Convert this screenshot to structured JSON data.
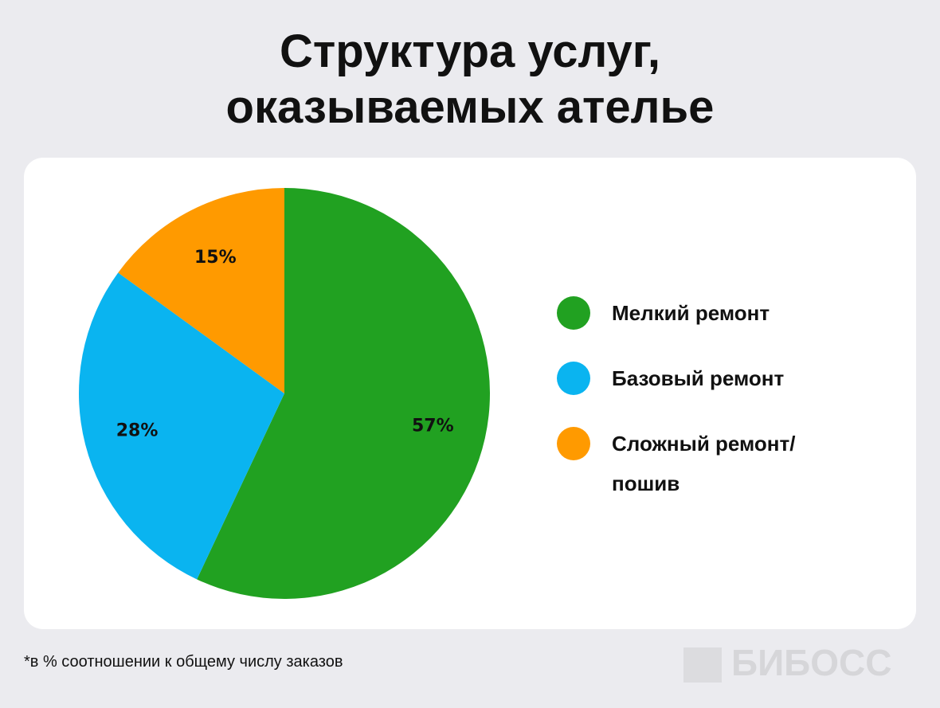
{
  "chart_data": {
    "type": "pie",
    "title": "Структура услуг, оказываемых ателье",
    "categories": [
      "Мелкий ремонт",
      "Базовый ремонт",
      "Сложный ремонт/ пошив"
    ],
    "values": [
      57,
      28,
      15
    ],
    "value_labels": [
      "57%",
      "28%",
      "15%"
    ],
    "colors": [
      "#21a121",
      "#0ab4f0",
      "#ff9a00"
    ],
    "footnote": "*в % соотношении к общему числу заказов",
    "logo": "БИБОСС"
  }
}
